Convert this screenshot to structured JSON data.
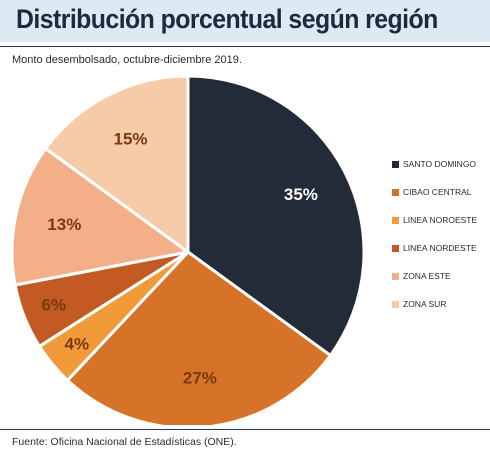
{
  "header": {
    "title": "Distribución porcentual según región",
    "subtitle": "Monto desembolsado, octubre-diciembre 2019."
  },
  "footer": {
    "source": "Fuente: Oficina Nacional de Estadísticas (ONE)."
  },
  "chart_data": {
    "type": "pie",
    "title": "Distribución porcentual según región",
    "subtitle": "Monto desembolsado, octubre-diciembre 2019.",
    "categories": [
      "SANTO DOMINGO",
      "CIBAO CENTRAL",
      "LINEA NOROESTE",
      "LINEA NORDESTE",
      "ZONA ESTE",
      "ZONA SUR"
    ],
    "values": [
      35,
      27,
      4,
      6,
      13,
      15
    ],
    "value_labels": [
      "35%",
      "27%",
      "4%",
      "6%",
      "13%",
      "15%"
    ],
    "colors": [
      "#232a38",
      "#d77328",
      "#f09a3a",
      "#c35a23",
      "#f3b088",
      "#f6cba8"
    ],
    "label_colors": [
      "#ffffff",
      "#7a3a10",
      "#7a3a10",
      "#7a3a10",
      "#7a3a10",
      "#7a3a10"
    ],
    "start_angle_deg": 0,
    "direction": "clockwise",
    "legend_position": "right"
  }
}
